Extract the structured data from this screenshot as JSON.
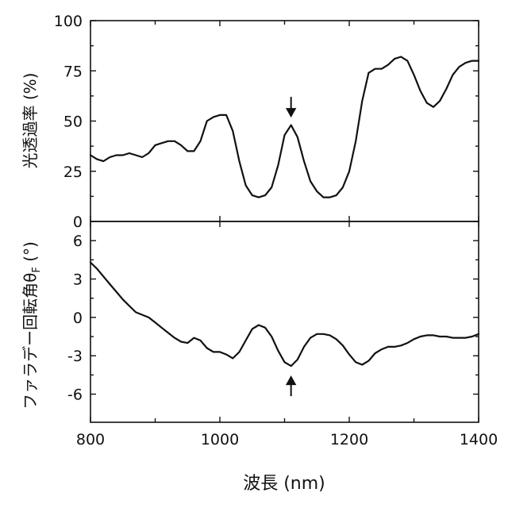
{
  "chart_data": {
    "type": "line",
    "shared_x": {
      "xlabel": "波長 (nm)",
      "xlim": [
        800,
        1400
      ],
      "xticks": [
        800,
        1000,
        1200,
        1400
      ],
      "xtick_labels": [
        "800",
        "1000",
        "1200",
        "1400"
      ]
    },
    "panels": [
      {
        "id": "top",
        "ylabel": "光透過率 (%)",
        "ylim": [
          0,
          100
        ],
        "yticks": [
          0,
          25,
          50,
          75,
          100
        ],
        "ytick_labels": [
          "0",
          "25",
          "50",
          "75",
          "100"
        ],
        "arrow": {
          "x": 1110,
          "direction": "down"
        },
        "x": [
          800,
          810,
          820,
          830,
          840,
          850,
          860,
          870,
          880,
          890,
          900,
          910,
          920,
          930,
          940,
          950,
          960,
          970,
          980,
          990,
          1000,
          1010,
          1020,
          1030,
          1040,
          1050,
          1060,
          1070,
          1080,
          1090,
          1100,
          1110,
          1120,
          1130,
          1140,
          1150,
          1160,
          1170,
          1180,
          1190,
          1200,
          1210,
          1220,
          1230,
          1240,
          1250,
          1260,
          1270,
          1280,
          1290,
          1300,
          1310,
          1320,
          1330,
          1340,
          1350,
          1360,
          1370,
          1380,
          1390,
          1400
        ],
        "y": [
          33,
          31,
          30,
          32,
          33,
          33,
          34,
          33,
          32,
          34,
          38,
          39,
          40,
          40,
          38,
          35,
          35,
          40,
          50,
          52,
          53,
          53,
          45,
          30,
          18,
          13,
          12,
          13,
          17,
          28,
          43,
          48,
          42,
          30,
          20,
          15,
          12,
          12,
          13,
          17,
          25,
          40,
          60,
          74,
          76,
          76,
          78,
          81,
          82,
          80,
          73,
          65,
          59,
          57,
          60,
          66,
          73,
          77,
          79,
          80,
          80
        ]
      },
      {
        "id": "bottom",
        "ylabel": "ファラデー回転角θF (°)",
        "ylim": [
          -8.2,
          7.5
        ],
        "yticks": [
          -6,
          -3,
          0,
          3,
          6
        ],
        "ytick_labels": [
          "-6",
          "-3",
          "0",
          "3",
          "6"
        ],
        "arrow": {
          "x": 1110,
          "direction": "up"
        },
        "x": [
          800,
          810,
          820,
          830,
          840,
          850,
          860,
          870,
          880,
          890,
          900,
          910,
          920,
          930,
          940,
          950,
          960,
          970,
          980,
          990,
          1000,
          1010,
          1020,
          1030,
          1040,
          1050,
          1060,
          1070,
          1080,
          1090,
          1100,
          1110,
          1120,
          1130,
          1140,
          1150,
          1160,
          1170,
          1180,
          1190,
          1200,
          1210,
          1220,
          1230,
          1240,
          1250,
          1260,
          1270,
          1280,
          1290,
          1300,
          1310,
          1320,
          1330,
          1340,
          1350,
          1360,
          1370,
          1380,
          1390,
          1400
        ],
        "y": [
          4.3,
          3.8,
          3.2,
          2.6,
          2.0,
          1.4,
          0.9,
          0.4,
          0.2,
          0.0,
          -0.4,
          -0.8,
          -1.2,
          -1.6,
          -1.9,
          -2.0,
          -1.6,
          -1.8,
          -2.4,
          -2.7,
          -2.7,
          -2.9,
          -3.2,
          -2.7,
          -1.8,
          -0.9,
          -0.6,
          -0.8,
          -1.5,
          -2.6,
          -3.5,
          -3.8,
          -3.3,
          -2.3,
          -1.6,
          -1.3,
          -1.3,
          -1.4,
          -1.7,
          -2.2,
          -2.9,
          -3.5,
          -3.7,
          -3.4,
          -2.8,
          -2.5,
          -2.3,
          -2.3,
          -2.2,
          -2.0,
          -1.7,
          -1.5,
          -1.4,
          -1.4,
          -1.5,
          -1.5,
          -1.6,
          -1.6,
          -1.6,
          -1.5,
          -1.3
        ]
      }
    ]
  }
}
